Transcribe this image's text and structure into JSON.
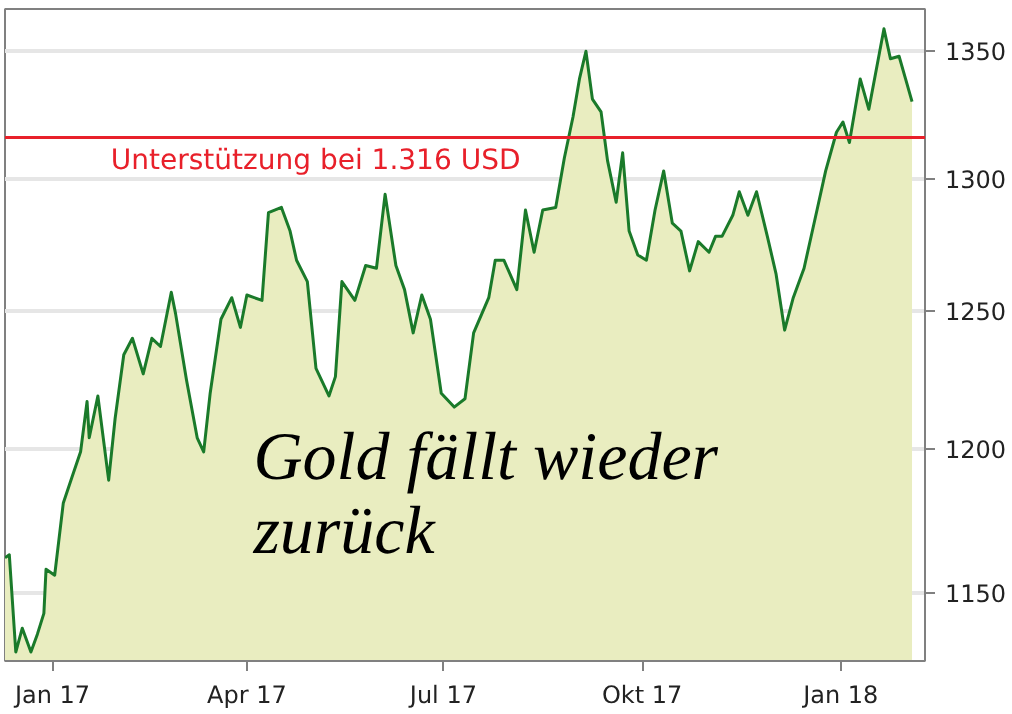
{
  "chart_data": {
    "type": "area",
    "log": "y",
    "grid": "y",
    "annotations": [
      "Gold fällt wieder zurück"
    ],
    "xlim": [
      "2016-12-10",
      "2018-02-09"
    ],
    "xticks": [
      {
        "value": "2017-01-01",
        "label": "Jan 17"
      },
      {
        "value": "2017-04-01",
        "label": "Apr 17"
      },
      {
        "value": "2017-07-01",
        "label": "Jul 17"
      },
      {
        "value": "2017-10-01",
        "label": "Okt 17"
      },
      {
        "value": "2018-01-01",
        "label": "Jan 18"
      }
    ],
    "ylim": [
      1127,
      1367
    ],
    "yticks": [
      1150,
      1200,
      1250,
      1300,
      1350
    ],
    "ref_lines": [
      {
        "axis": "y",
        "value": 1316,
        "label": "Unterstützung bei 1.316 USD",
        "color": "#e8202a"
      }
    ],
    "x": [
      "2016-12-10",
      "2016-12-12",
      "2016-12-15",
      "2016-12-18",
      "2016-12-22",
      "2016-12-25",
      "2016-12-28",
      "2016-12-29",
      "2017-01-02",
      "2017-01-06",
      "2017-01-10",
      "2017-01-14",
      "2017-01-17",
      "2017-01-18",
      "2017-01-22",
      "2017-01-27",
      "2017-01-30",
      "2017-02-03",
      "2017-02-07",
      "2017-02-12",
      "2017-02-16",
      "2017-02-20",
      "2017-02-25",
      "2017-02-27",
      "2017-03-04",
      "2017-03-09",
      "2017-03-12",
      "2017-03-15",
      "2017-03-20",
      "2017-03-25",
      "2017-03-29",
      "2017-04-01",
      "2017-04-08",
      "2017-04-11",
      "2017-04-17",
      "2017-04-21",
      "2017-04-24",
      "2017-04-29",
      "2017-05-03",
      "2017-05-09",
      "2017-05-12",
      "2017-05-15",
      "2017-05-21",
      "2017-05-26",
      "2017-05-31",
      "2017-06-04",
      "2017-06-09",
      "2017-06-13",
      "2017-06-17",
      "2017-06-21",
      "2017-06-25",
      "2017-06-30",
      "2017-07-06",
      "2017-07-11",
      "2017-07-15",
      "2017-07-22",
      "2017-07-25",
      "2017-07-29",
      "2017-08-04",
      "2017-08-08",
      "2017-08-12",
      "2017-08-16",
      "2017-08-22",
      "2017-08-26",
      "2017-08-30",
      "2017-09-02",
      "2017-09-05",
      "2017-09-08",
      "2017-09-12",
      "2017-09-15",
      "2017-09-19",
      "2017-09-22",
      "2017-09-25",
      "2017-09-29",
      "2017-10-03",
      "2017-10-07",
      "2017-10-11",
      "2017-10-15",
      "2017-10-19",
      "2017-10-23",
      "2017-10-27",
      "2017-11-01",
      "2017-11-04",
      "2017-11-07",
      "2017-11-12",
      "2017-11-15",
      "2017-11-19",
      "2017-11-23",
      "2017-11-28",
      "2017-12-02",
      "2017-12-06",
      "2017-12-10",
      "2017-12-15",
      "2017-12-21",
      "2017-12-25",
      "2017-12-30",
      "2018-01-02",
      "2018-01-05",
      "2018-01-10",
      "2018-01-14",
      "2018-01-21",
      "2018-01-24",
      "2018-01-28",
      "2018-01-31",
      "2018-02-03"
    ],
    "series": [
      {
        "color": "#1a7a2a",
        "values": [
          1162,
          1163,
          1130,
          1138,
          1130,
          1136,
          1143,
          1158,
          1156,
          1181,
          1190,
          1199,
          1217,
          1204,
          1219,
          1189,
          1211,
          1234,
          1240,
          1227,
          1240,
          1237,
          1257,
          1249,
          1225,
          1204,
          1199,
          1220,
          1247,
          1255,
          1244,
          1256,
          1254,
          1287,
          1289,
          1280,
          1269,
          1261,
          1229,
          1219,
          1226,
          1261,
          1254,
          1267,
          1266,
          1294,
          1267,
          1258,
          1242,
          1256,
          1247,
          1220,
          1215,
          1218,
          1242,
          1255,
          1269,
          1269,
          1258,
          1288,
          1272,
          1288,
          1289,
          1308,
          1324,
          1339,
          1350,
          1331,
          1326,
          1307,
          1291,
          1310,
          1280,
          1271,
          1269,
          1288,
          1303,
          1283,
          1280,
          1265,
          1276,
          1272,
          1278,
          1278,
          1286,
          1295,
          1286,
          1295,
          1278,
          1264,
          1243,
          1255,
          1266,
          1288,
          1303,
          1318,
          1322,
          1314,
          1339,
          1327,
          1359,
          1347,
          1348,
          1339,
          1330
        ]
      }
    ]
  }
}
